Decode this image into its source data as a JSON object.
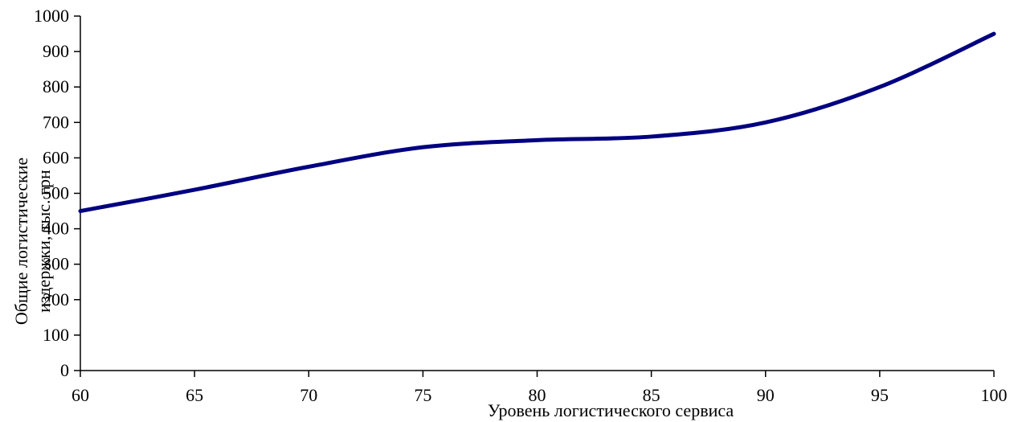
{
  "chart_data": {
    "type": "line",
    "title": "",
    "xlabel": "Уровень логистического сервиса",
    "ylabel_lines": [
      "Общие логистические",
      "издержки, тыс. грн"
    ],
    "xlim": [
      60,
      100
    ],
    "ylim": [
      0,
      1000
    ],
    "x_ticks": [
      60,
      65,
      70,
      75,
      80,
      85,
      90,
      95,
      100
    ],
    "y_ticks": [
      0,
      100,
      200,
      300,
      400,
      500,
      600,
      700,
      800,
      900,
      1000
    ],
    "grid": false,
    "legend": "none",
    "series": [
      {
        "x": [
          60,
          65,
          70,
          75,
          80,
          85,
          90,
          95,
          100
        ],
        "y": [
          450,
          510,
          575,
          630,
          650,
          660,
          700,
          800,
          950
        ],
        "color": "#000080"
      }
    ]
  }
}
